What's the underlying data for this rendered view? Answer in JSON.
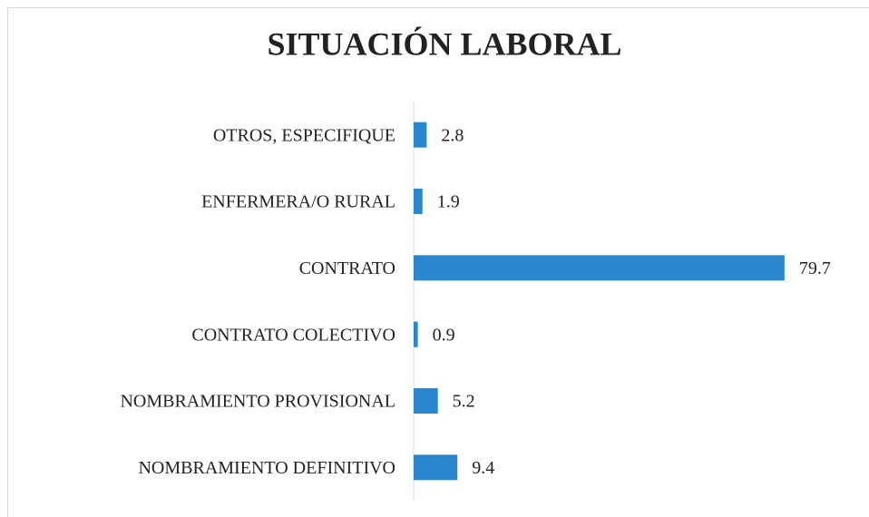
{
  "chart_data": {
    "type": "bar",
    "orientation": "horizontal",
    "title": "SITUACIÓN LABORAL",
    "categories": [
      "OTROS, ESPECIFIQUE",
      "ENFERMERA/O RURAL",
      "CONTRATO",
      "CONTRATO COLECTIVO",
      "NOMBRAMIENTO PROVISIONAL",
      "NOMBRAMIENTO DEFINITIVO"
    ],
    "values": [
      2.8,
      1.9,
      79.7,
      0.9,
      5.2,
      9.4
    ],
    "color": "#2a86cd"
  }
}
